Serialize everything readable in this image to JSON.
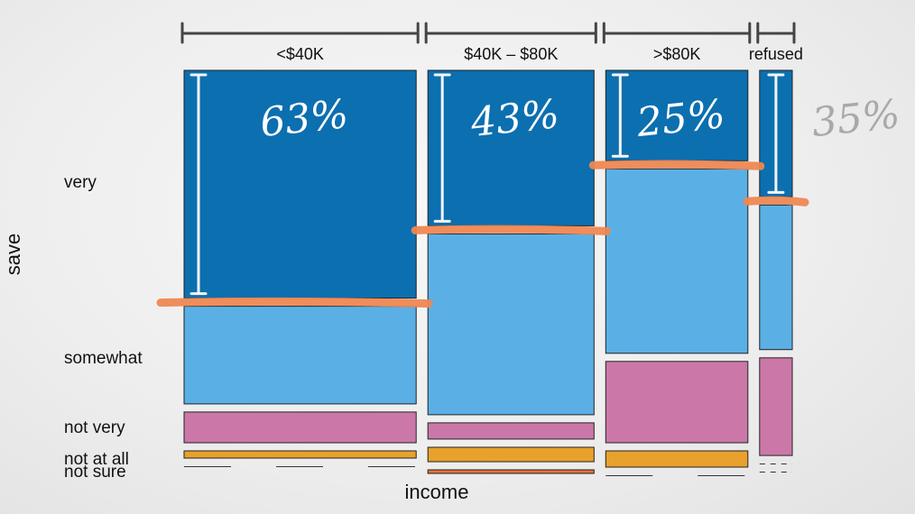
{
  "chart_data": {
    "type": "mosaic",
    "xlabel": "income",
    "ylabel": "save",
    "x_categories": [
      "<$40K",
      "$40K – $80K",
      ">$80K",
      "refused"
    ],
    "x_proportions": [
      0.405,
      0.29,
      0.248,
      0.057
    ],
    "y_categories": [
      "very",
      "somewhat",
      "not very",
      "not at all",
      "not sure"
    ],
    "y_labels": [
      "very",
      "somewhat",
      "not very",
      "not at all",
      "not sure"
    ],
    "colors": {
      "very": "#0c6fb0",
      "somewhat": "#5ab0e5",
      "not very": "#cb78a8",
      "not at all": "#e8a12c",
      "not sure": "#e07535"
    },
    "columns": [
      {
        "category": "<$40K",
        "proportions": {
          "very": 0.63,
          "somewhat": 0.27,
          "not very": 0.085,
          "not at all": 0.02,
          "not sure": 0.0
        }
      },
      {
        "category": "$40K – $80K",
        "proportions": {
          "very": 0.43,
          "somewhat": 0.5,
          "not very": 0.045,
          "not at all": 0.04,
          "not sure": 0.01
        }
      },
      {
        "category": ">$80K",
        "proportions": {
          "very": 0.25,
          "somewhat": 0.51,
          "not very": 0.225,
          "not at all": 0.045,
          "not sure": 0.0
        }
      },
      {
        "category": "refused",
        "proportions": {
          "very": 0.35,
          "somewhat": 0.4,
          "not very": 0.27,
          "not at all": 0.0,
          "not sure": 0.0
        }
      }
    ],
    "annotations": [
      "63%",
      "43%",
      "25%",
      "35%"
    ]
  }
}
